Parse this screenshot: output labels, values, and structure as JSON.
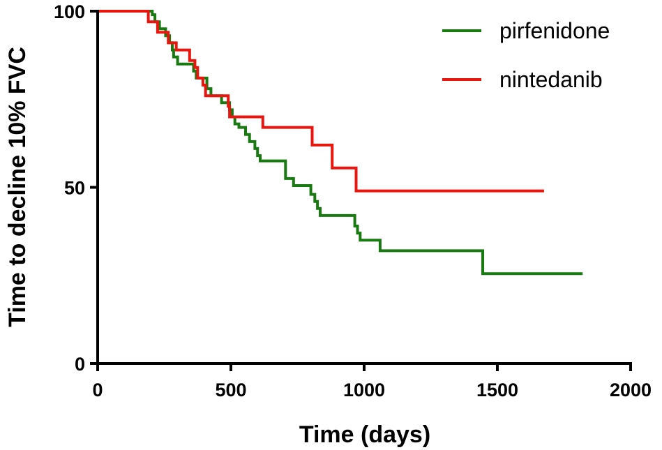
{
  "chart_data": {
    "type": "line",
    "step": true,
    "xlabel": "Time (days)",
    "ylabel": "Time to decline 10% FVC",
    "xlim": [
      0,
      2000
    ],
    "ylim": [
      0,
      100
    ],
    "x_ticks": [
      0,
      500,
      1000,
      1500,
      2000
    ],
    "y_ticks": [
      0,
      50,
      100
    ],
    "grid": false,
    "legend_position": "top-right",
    "series": [
      {
        "name": "pirfenidone",
        "color": "#1a7a12",
        "points": [
          [
            0,
            100
          ],
          [
            205,
            100
          ],
          [
            205,
            99
          ],
          [
            215,
            99
          ],
          [
            215,
            97
          ],
          [
            232,
            97
          ],
          [
            232,
            95
          ],
          [
            255,
            95
          ],
          [
            255,
            93
          ],
          [
            270,
            93
          ],
          [
            270,
            91
          ],
          [
            280,
            91
          ],
          [
            280,
            89
          ],
          [
            285,
            89
          ],
          [
            285,
            87
          ],
          [
            300,
            87
          ],
          [
            300,
            85
          ],
          [
            360,
            85
          ],
          [
            360,
            83
          ],
          [
            370,
            83
          ],
          [
            370,
            81
          ],
          [
            410,
            81
          ],
          [
            410,
            78
          ],
          [
            425,
            78
          ],
          [
            425,
            76
          ],
          [
            465,
            76
          ],
          [
            465,
            74
          ],
          [
            495,
            74
          ],
          [
            495,
            72
          ],
          [
            505,
            72
          ],
          [
            505,
            70
          ],
          [
            515,
            70
          ],
          [
            515,
            68
          ],
          [
            530,
            68
          ],
          [
            530,
            67
          ],
          [
            555,
            67
          ],
          [
            555,
            65
          ],
          [
            570,
            65
          ],
          [
            570,
            63
          ],
          [
            590,
            63
          ],
          [
            590,
            61
          ],
          [
            600,
            61
          ],
          [
            600,
            59
          ],
          [
            610,
            59
          ],
          [
            610,
            57.5
          ],
          [
            705,
            57.5
          ],
          [
            705,
            52.5
          ],
          [
            735,
            52.5
          ],
          [
            735,
            50.5
          ],
          [
            800,
            50.5
          ],
          [
            800,
            48
          ],
          [
            815,
            48
          ],
          [
            815,
            46
          ],
          [
            825,
            46
          ],
          [
            825,
            44
          ],
          [
            835,
            44
          ],
          [
            835,
            42
          ],
          [
            965,
            42
          ],
          [
            965,
            39
          ],
          [
            975,
            39
          ],
          [
            975,
            37
          ],
          [
            985,
            37
          ],
          [
            985,
            35
          ],
          [
            1060,
            35
          ],
          [
            1060,
            32
          ],
          [
            1445,
            32
          ],
          [
            1445,
            25.5
          ],
          [
            1820,
            25.5
          ]
        ]
      },
      {
        "name": "nintedanib",
        "color": "#e8160f",
        "points": [
          [
            0,
            100
          ],
          [
            190,
            100
          ],
          [
            190,
            97
          ],
          [
            225,
            97
          ],
          [
            225,
            94
          ],
          [
            265,
            94
          ],
          [
            265,
            91
          ],
          [
            295,
            91
          ],
          [
            295,
            89
          ],
          [
            345,
            89
          ],
          [
            345,
            86
          ],
          [
            365,
            86
          ],
          [
            365,
            84
          ],
          [
            375,
            84
          ],
          [
            375,
            81
          ],
          [
            395,
            81
          ],
          [
            395,
            79
          ],
          [
            405,
            79
          ],
          [
            405,
            76
          ],
          [
            490,
            76
          ],
          [
            490,
            73
          ],
          [
            495,
            73
          ],
          [
            495,
            70
          ],
          [
            620,
            70
          ],
          [
            620,
            67
          ],
          [
            805,
            67
          ],
          [
            805,
            62
          ],
          [
            880,
            62
          ],
          [
            880,
            55.5
          ],
          [
            970,
            55.5
          ],
          [
            970,
            49
          ],
          [
            1675,
            49
          ]
        ]
      }
    ]
  }
}
